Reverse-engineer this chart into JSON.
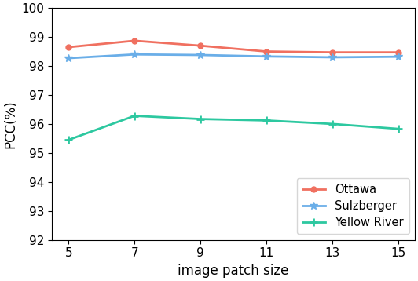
{
  "x": [
    5,
    7,
    9,
    11,
    13,
    15
  ],
  "ottawa": [
    98.65,
    98.87,
    98.7,
    98.5,
    98.47,
    98.47
  ],
  "sulzberger": [
    98.27,
    98.4,
    98.38,
    98.33,
    98.3,
    98.32
  ],
  "yellow_river": [
    95.45,
    96.28,
    96.17,
    96.12,
    96.0,
    95.83
  ],
  "ottawa_color": "#F07060",
  "sulzberger_color": "#6AAEE8",
  "yellow_river_color": "#2DC8A0",
  "xlabel": "image patch size",
  "ylabel": "PCC(%)",
  "ylim": [
    92,
    100
  ],
  "yticks": [
    92,
    93,
    94,
    95,
    96,
    97,
    98,
    99,
    100
  ],
  "legend_labels": [
    "Ottawa",
    "Sulzberger",
    "Yellow River"
  ],
  "xlabel_fontsize": 12,
  "ylabel_fontsize": 12,
  "tick_fontsize": 11,
  "legend_fontsize": 10.5
}
